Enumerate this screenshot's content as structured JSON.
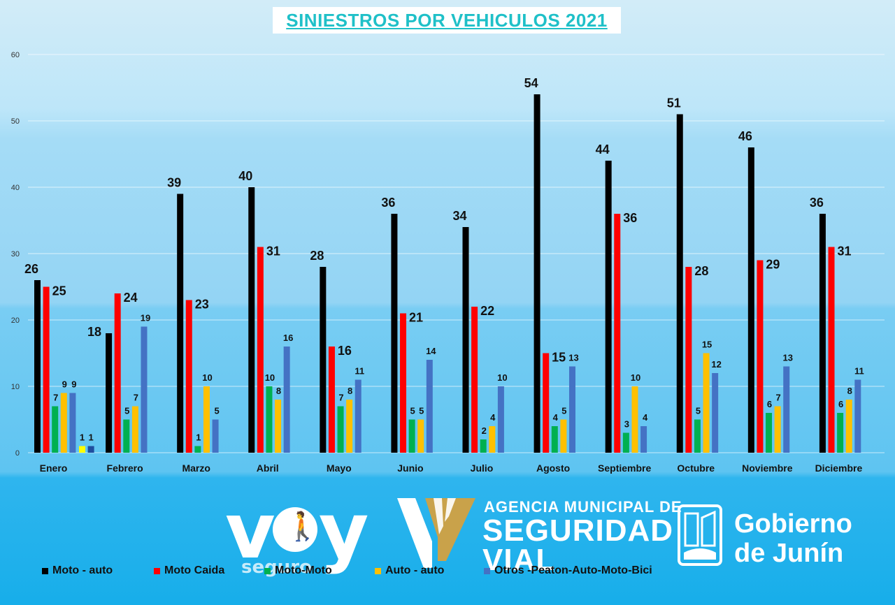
{
  "colors": {
    "title": "#1fc0c8",
    "moto_auto": "#000000",
    "moto_caida": "#ff0000",
    "moto_moto": "#00b050",
    "auto_auto": "#ffc000",
    "otros": "#4472c4",
    "enero_auto_auto": "#ffff00",
    "enero_otros": "#1f4e9e"
  },
  "logos": {
    "voy": "voy",
    "seguro": "seguro",
    "agencia_line1": "AGENCIA MUNICIPAL DE",
    "agencia_line2": "SEGURIDAD",
    "agencia_line3": "VIAL",
    "gobierno_line1": "Gobierno",
    "gobierno_line2": "de Junín"
  },
  "chart_data": {
    "type": "bar",
    "title": "SINIESTROS POR VEHICULOS 2021",
    "xlabel": "",
    "ylabel": "",
    "ylim": [
      0,
      60
    ],
    "yticks": [
      0,
      10,
      20,
      30,
      40,
      50,
      60
    ],
    "grid": true,
    "legend_position": "bottom",
    "categories": [
      "Enero",
      "Febrero",
      "Marzo",
      "Abril",
      "Mayo",
      "Junio",
      "Julio",
      "Agosto",
      "Septiembre",
      "Octubre",
      "Noviembre",
      "Diciembre"
    ],
    "series": [
      {
        "name": "Moto - auto",
        "values": [
          26,
          18,
          39,
          40,
          28,
          36,
          34,
          54,
          44,
          51,
          46,
          36
        ]
      },
      {
        "name": "Moto Caida",
        "values": [
          25,
          24,
          23,
          31,
          16,
          21,
          22,
          15,
          36,
          28,
          29,
          31
        ]
      },
      {
        "name": "Moto-Moto",
        "values": [
          7,
          5,
          1,
          10,
          7,
          5,
          2,
          4,
          3,
          5,
          6,
          6
        ]
      },
      {
        "name": "Auto - auto",
        "values": [
          9,
          7,
          10,
          8,
          8,
          5,
          4,
          5,
          10,
          15,
          7,
          8
        ]
      },
      {
        "name": "Otros -Peaton-Auto-Moto-Bici",
        "values": [
          9,
          19,
          5,
          16,
          11,
          14,
          10,
          13,
          4,
          12,
          13,
          11
        ]
      }
    ],
    "extra_series": [
      {
        "values": [
          1,
          null,
          null,
          null,
          null,
          null,
          null,
          null,
          null,
          null,
          null,
          null
        ]
      },
      {
        "values": [
          1,
          null,
          null,
          null,
          null,
          null,
          null,
          null,
          null,
          null,
          null,
          null
        ]
      }
    ]
  }
}
